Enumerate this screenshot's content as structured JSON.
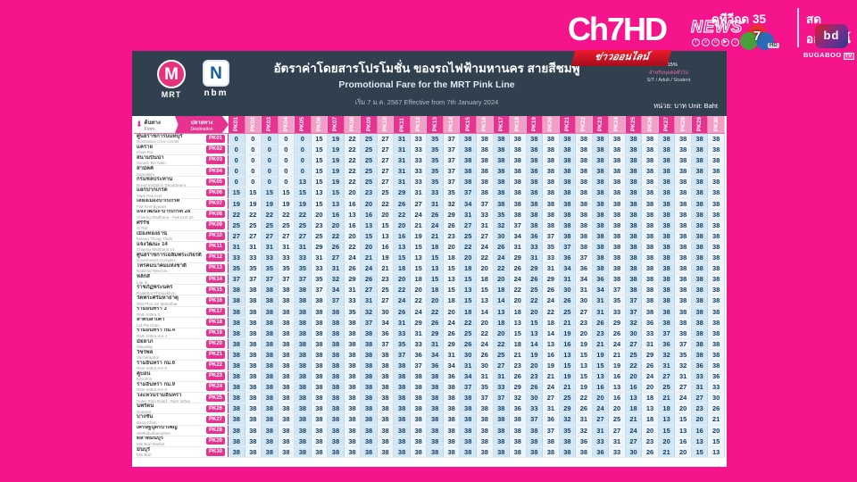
{
  "channel_bar": {
    "wordmark": "Ch7HD",
    "news": "NEWS",
    "social_icons": [
      "facebook-icon",
      "x-icon",
      "instagram-icon",
      "youtube-icon",
      "tiktok-icon"
    ],
    "social_glyphs": [
      "f",
      "x",
      "o",
      "▶",
      "♪"
    ],
    "watch_tv": "ดูทีวีกด 35",
    "live_online": "สดออนไลน์",
    "ch7_number": "7",
    "ch7_hd": "HD",
    "bugaboo_glyph": "bd",
    "bugaboo_word": "BUGABOO",
    "bugaboo_tv": "TV"
  },
  "poster": {
    "badge": "ข่าวออนไลน์",
    "logos": {
      "mrt_letter": "M",
      "mrt_word": "MRT",
      "nbm_letter": "N",
      "nbm_word": "nbm"
    },
    "title_th": "อัตราค่าโดยสารโปรโมชั่น ของรถไฟฟ้ามหานคร สายสีชมพู",
    "title_en": "Promotional Fare for the MRT  Pink Line",
    "effective": "เริ่ม 7 ม.ค. 2567 Effective from 7th January 2024",
    "notes": {
      "line1": "ลด 15%",
      "line2": "สำหรับบุคคลทั่วไป",
      "line3": "S/T / Adult / Student"
    },
    "unit": "หน่วย: บาท   Unit: Baht",
    "table": {
      "origin_th": "ต้นทาง",
      "origin_en": "From",
      "dest_th": "ปลายทาง",
      "dest_en": "Destination",
      "colors": {
        "accent_pink": "#e5338f",
        "light_pink": "#f29fc7",
        "tint_blue": "#d2e7f6",
        "navy": "#31404e",
        "bg_pink": "#F5148C"
      },
      "stations": [
        {
          "code": "PK01",
          "th": "ศูนย์ราชการนนทบุรี",
          "en": "Nonthaburi Civic Center"
        },
        {
          "code": "PK02",
          "th": "แคราย",
          "en": "Khae Rai"
        },
        {
          "code": "PK03",
          "th": "สนามบินน้ำ",
          "en": "Sanam Bin Nam"
        },
        {
          "code": "PK04",
          "th": "สามัคคี",
          "en": "Samakkhi"
        },
        {
          "code": "PK05",
          "th": "กรมชลประทาน",
          "en": "Royal Irrigation Department"
        },
        {
          "code": "PK06",
          "th": "แยกปากเกร็ด",
          "en": "Yaek Pak Kret"
        },
        {
          "code": "PK07",
          "th": "เลี่ยงเมืองปากเกร็ด",
          "en": "Pak Kret Bypass"
        },
        {
          "code": "PK08",
          "th": "แจ้งวัฒนะ-ปากเกร็ด 28",
          "en": "Chaeng Watthana - Pak Kret 28"
        },
        {
          "code": "PK09",
          "th": "ศรีรัช",
          "en": "Si Rat"
        },
        {
          "code": "PK10",
          "th": "เมืองทองธานี",
          "en": "Muang Thong Thani"
        },
        {
          "code": "PK11",
          "th": "แจ้งวัฒนะ 14",
          "en": "Chaeng Watthana 14"
        },
        {
          "code": "PK12",
          "th": "ศูนย์ราชการเฉลิมพระเกียรติ",
          "en": "Government Complex"
        },
        {
          "code": "PK13",
          "th": "โทรคมนาคมแห่งชาติ",
          "en": "National Telecom"
        },
        {
          "code": "PK14",
          "th": "หลักสี่",
          "en": "Lak Si"
        },
        {
          "code": "PK15",
          "th": "ราชภัฏพระนคร",
          "en": "Rajabhat Phranakhon"
        },
        {
          "code": "PK16",
          "th": "วัดพระศรีมหาธาตุ",
          "en": "Wat Phra Sri Mahathat"
        },
        {
          "code": "PK17",
          "th": "รามอินทรา 3",
          "en": "Ram Inthra 3"
        },
        {
          "code": "PK18",
          "th": "ลาดปลาเค้า",
          "en": "Lat Pla Khao"
        },
        {
          "code": "PK19",
          "th": "รามอินทรา กม.4",
          "en": "Ram Inthra Km.4"
        },
        {
          "code": "PK20",
          "th": "มัยลาภ",
          "en": "Maiyalap"
        },
        {
          "code": "PK21",
          "th": "วัชรพล",
          "en": "Vacharaphol"
        },
        {
          "code": "PK22",
          "th": "รามอินทรา กม.6",
          "en": "Ram Inthra Km.6"
        },
        {
          "code": "PK23",
          "th": "คู้บอน",
          "en": "Khu Bon"
        },
        {
          "code": "PK24",
          "th": "รามอินทรา กม.9",
          "en": "Ram Inthra Km.9"
        },
        {
          "code": "PK25",
          "th": "วงแหวนรามอินทรา",
          "en": "Outer Ring Road - Ram Inthra"
        },
        {
          "code": "PK26",
          "th": "นพรัตน์",
          "en": "Noparat"
        },
        {
          "code": "PK27",
          "th": "บางชัน",
          "en": "Bang Chan"
        },
        {
          "code": "PK28",
          "th": "เศรษฐบุตรบำเพ็ญ",
          "en": "Setthabutbamphen"
        },
        {
          "code": "PK29",
          "th": "ตลาดมีนบุรี",
          "en": "Min Buri Market"
        },
        {
          "code": "PK30",
          "th": "มีนบุรี",
          "en": "Min Buri"
        }
      ],
      "fares": [
        [
          0,
          0,
          0,
          0,
          0,
          15,
          19,
          22,
          25,
          27,
          31,
          33,
          35,
          37,
          38,
          38,
          38,
          38,
          38,
          38,
          38,
          38,
          38,
          38,
          38,
          38,
          38,
          38,
          38,
          38
        ],
        [
          0,
          0,
          0,
          0,
          0,
          15,
          19,
          22,
          25,
          27,
          31,
          33,
          35,
          37,
          38,
          38,
          38,
          38,
          38,
          38,
          38,
          38,
          38,
          38,
          38,
          38,
          38,
          38,
          38,
          38
        ],
        [
          0,
          0,
          0,
          0,
          0,
          15,
          19,
          22,
          25,
          27,
          31,
          33,
          35,
          37,
          38,
          38,
          38,
          38,
          38,
          38,
          38,
          38,
          38,
          38,
          38,
          38,
          38,
          38,
          38,
          38
        ],
        [
          0,
          0,
          0,
          0,
          0,
          15,
          19,
          22,
          25,
          27,
          31,
          33,
          35,
          37,
          38,
          38,
          38,
          38,
          38,
          38,
          38,
          38,
          38,
          38,
          38,
          38,
          38,
          38,
          38,
          38
        ],
        [
          0,
          0,
          0,
          0,
          13,
          15,
          19,
          22,
          25,
          27,
          31,
          33,
          35,
          37,
          38,
          38,
          38,
          38,
          38,
          38,
          38,
          38,
          38,
          38,
          38,
          38,
          38,
          38,
          38,
          38
        ],
        [
          15,
          15,
          15,
          15,
          15,
          13,
          15,
          20,
          23,
          25,
          29,
          31,
          33,
          35,
          37,
          38,
          38,
          38,
          38,
          38,
          38,
          38,
          38,
          38,
          38,
          38,
          38,
          38,
          38,
          38
        ],
        [
          19,
          19,
          19,
          19,
          19,
          15,
          13,
          16,
          20,
          22,
          26,
          27,
          31,
          32,
          34,
          37,
          38,
          38,
          38,
          38,
          38,
          38,
          38,
          38,
          38,
          38,
          38,
          38,
          38,
          38
        ],
        [
          22,
          22,
          22,
          22,
          22,
          20,
          16,
          13,
          16,
          20,
          22,
          24,
          26,
          29,
          31,
          33,
          35,
          38,
          38,
          38,
          38,
          38,
          38,
          38,
          38,
          38,
          38,
          38,
          38,
          38
        ],
        [
          25,
          25,
          25,
          25,
          25,
          23,
          20,
          16,
          13,
          15,
          20,
          21,
          24,
          26,
          27,
          31,
          32,
          37,
          38,
          38,
          38,
          38,
          38,
          38,
          38,
          38,
          38,
          38,
          38,
          38
        ],
        [
          27,
          27,
          27,
          27,
          27,
          25,
          22,
          20,
          15,
          13,
          16,
          19,
          21,
          23,
          25,
          27,
          30,
          34,
          36,
          37,
          38,
          38,
          38,
          38,
          38,
          38,
          38,
          38,
          38,
          38
        ],
        [
          31,
          31,
          31,
          31,
          31,
          29,
          26,
          22,
          20,
          16,
          13,
          15,
          18,
          20,
          22,
          24,
          26,
          31,
          33,
          35,
          37,
          38,
          38,
          38,
          38,
          38,
          38,
          38,
          38,
          38
        ],
        [
          33,
          33,
          33,
          33,
          33,
          31,
          27,
          24,
          21,
          19,
          15,
          13,
          15,
          18,
          20,
          22,
          24,
          29,
          31,
          33,
          36,
          37,
          38,
          38,
          38,
          38,
          38,
          38,
          38,
          38
        ],
        [
          35,
          35,
          35,
          35,
          35,
          33,
          31,
          26,
          24,
          21,
          18,
          15,
          13,
          15,
          18,
          20,
          22,
          26,
          29,
          31,
          34,
          36,
          38,
          38,
          38,
          38,
          38,
          38,
          38,
          38
        ],
        [
          37,
          37,
          37,
          37,
          37,
          35,
          32,
          29,
          26,
          23,
          20,
          18,
          15,
          13,
          15,
          18,
          20,
          24,
          26,
          29,
          31,
          34,
          36,
          38,
          38,
          38,
          38,
          38,
          38,
          38
        ],
        [
          38,
          38,
          38,
          38,
          38,
          37,
          34,
          31,
          27,
          25,
          22,
          20,
          18,
          15,
          13,
          15,
          18,
          22,
          25,
          26,
          30,
          31,
          34,
          37,
          38,
          38,
          38,
          38,
          38,
          38
        ],
        [
          38,
          38,
          38,
          38,
          38,
          38,
          37,
          33,
          31,
          27,
          24,
          22,
          20,
          18,
          15,
          13,
          14,
          20,
          22,
          24,
          26,
          30,
          31,
          35,
          37,
          38,
          38,
          38,
          38,
          38
        ],
        [
          38,
          38,
          38,
          38,
          38,
          38,
          38,
          35,
          32,
          30,
          26,
          24,
          22,
          20,
          18,
          14,
          13,
          18,
          20,
          22,
          25,
          27,
          31,
          33,
          37,
          38,
          38,
          38,
          38,
          38
        ],
        [
          38,
          38,
          38,
          38,
          38,
          38,
          38,
          38,
          37,
          34,
          31,
          29,
          26,
          24,
          22,
          20,
          18,
          13,
          15,
          18,
          21,
          23,
          26,
          29,
          32,
          36,
          38,
          38,
          38,
          38
        ],
        [
          38,
          38,
          38,
          38,
          38,
          38,
          38,
          38,
          38,
          36,
          33,
          31,
          29,
          26,
          25,
          22,
          20,
          15,
          13,
          14,
          19,
          20,
          23,
          26,
          30,
          33,
          37,
          38,
          38,
          38
        ],
        [
          38,
          38,
          38,
          38,
          38,
          38,
          38,
          38,
          38,
          37,
          35,
          33,
          31,
          29,
          26,
          24,
          22,
          18,
          14,
          13,
          16,
          19,
          21,
          24,
          27,
          31,
          36,
          37,
          38,
          38
        ],
        [
          38,
          38,
          38,
          38,
          38,
          38,
          38,
          38,
          38,
          38,
          37,
          36,
          34,
          31,
          30,
          26,
          25,
          21,
          19,
          16,
          13,
          15,
          19,
          21,
          25,
          29,
          32,
          35,
          38,
          38
        ],
        [
          38,
          38,
          38,
          38,
          38,
          38,
          38,
          38,
          38,
          38,
          38,
          37,
          36,
          34,
          31,
          30,
          27,
          23,
          20,
          19,
          15,
          13,
          15,
          19,
          22,
          26,
          31,
          32,
          36,
          38
        ],
        [
          38,
          38,
          38,
          38,
          38,
          38,
          38,
          38,
          38,
          38,
          38,
          38,
          38,
          36,
          34,
          31,
          31,
          26,
          23,
          21,
          19,
          15,
          13,
          16,
          20,
          24,
          27,
          31,
          33,
          36
        ],
        [
          38,
          38,
          38,
          38,
          38,
          38,
          38,
          38,
          38,
          38,
          38,
          38,
          38,
          38,
          37,
          35,
          33,
          29,
          26,
          24,
          21,
          19,
          16,
          13,
          16,
          20,
          25,
          27,
          31,
          33
        ],
        [
          38,
          38,
          38,
          38,
          38,
          38,
          38,
          38,
          38,
          38,
          38,
          38,
          38,
          38,
          38,
          37,
          37,
          32,
          30,
          27,
          25,
          22,
          20,
          16,
          13,
          18,
          21,
          24,
          27,
          30
        ],
        [
          38,
          38,
          38,
          38,
          38,
          38,
          38,
          38,
          38,
          38,
          38,
          38,
          38,
          38,
          38,
          38,
          38,
          36,
          33,
          31,
          29,
          26,
          24,
          20,
          18,
          13,
          18,
          20,
          23,
          26
        ],
        [
          38,
          38,
          38,
          38,
          38,
          38,
          38,
          38,
          38,
          38,
          38,
          38,
          38,
          38,
          38,
          38,
          38,
          38,
          37,
          36,
          32,
          31,
          27,
          25,
          21,
          18,
          13,
          15,
          20,
          21
        ],
        [
          38,
          38,
          38,
          38,
          38,
          38,
          38,
          38,
          38,
          38,
          38,
          38,
          38,
          38,
          38,
          38,
          38,
          38,
          38,
          37,
          35,
          32,
          31,
          27,
          24,
          20,
          15,
          13,
          16,
          20
        ],
        [
          38,
          38,
          38,
          38,
          38,
          38,
          38,
          38,
          38,
          38,
          38,
          38,
          38,
          38,
          38,
          38,
          38,
          38,
          38,
          38,
          38,
          36,
          33,
          31,
          27,
          23,
          20,
          16,
          13,
          15
        ],
        [
          38,
          38,
          38,
          38,
          38,
          38,
          38,
          38,
          38,
          38,
          38,
          38,
          38,
          38,
          38,
          38,
          38,
          38,
          38,
          38,
          38,
          38,
          36,
          33,
          30,
          26,
          21,
          20,
          15,
          13
        ]
      ]
    }
  }
}
